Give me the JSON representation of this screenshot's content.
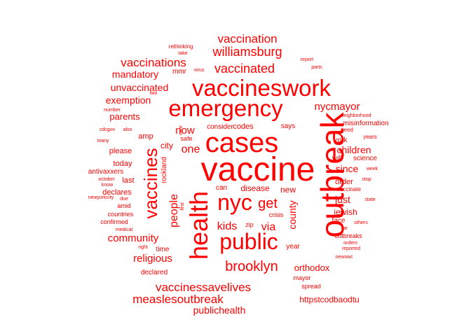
{
  "color": "#ff0000",
  "words": [
    {
      "text": "vaccine",
      "weight": 48
    },
    {
      "text": "outbreak",
      "weight": 46
    },
    {
      "text": "health",
      "weight": 36
    },
    {
      "text": "cases",
      "weight": 40
    },
    {
      "text": "vaccineswork",
      "weight": 33
    },
    {
      "text": "emergency",
      "weight": 33
    },
    {
      "text": "public",
      "weight": 32
    },
    {
      "text": "nyc",
      "weight": 32
    },
    {
      "text": "vaccines",
      "weight": 26
    },
    {
      "text": "get",
      "weight": 20
    },
    {
      "text": "brooklyn",
      "weight": 20
    },
    {
      "text": "vaccinated",
      "weight": 18
    },
    {
      "text": "williamsburg",
      "weight": 18
    },
    {
      "text": "vaccination",
      "weight": 17
    },
    {
      "text": "vaccinations",
      "weight": 17
    },
    {
      "text": "vaccinessavelives",
      "weight": 17
    },
    {
      "text": "people",
      "weight": 16
    },
    {
      "text": "measlesoutbreak",
      "weight": 17
    },
    {
      "text": "kids",
      "weight": 16
    },
    {
      "text": "via",
      "weight": 16
    },
    {
      "text": "community",
      "weight": 15
    },
    {
      "text": "religious",
      "weight": 15
    },
    {
      "text": "now",
      "weight": 15
    },
    {
      "text": "one",
      "weight": 16
    },
    {
      "text": "nycmayor",
      "weight": 15
    },
    {
      "text": "county",
      "weight": 14
    },
    {
      "text": "children",
      "weight": 14
    },
    {
      "text": "since",
      "weight": 14
    },
    {
      "text": "just",
      "weight": 14
    },
    {
      "text": "publichealth",
      "weight": 14
    },
    {
      "text": "unvaccinated",
      "weight": 14
    },
    {
      "text": "mandatory",
      "weight": 14
    },
    {
      "text": "exemption",
      "weight": 14
    },
    {
      "text": "parents",
      "weight": 13
    },
    {
      "text": "orthodox",
      "weight": 13
    },
    {
      "text": "httpstcodbaodtu",
      "weight": 12
    },
    {
      "text": "disease",
      "weight": 12
    },
    {
      "text": "jewish",
      "weight": 12
    },
    {
      "text": "city",
      "weight": 12
    },
    {
      "text": "please",
      "weight": 11
    },
    {
      "text": "today",
      "weight": 11
    },
    {
      "text": "order",
      "weight": 11
    },
    {
      "text": "codes",
      "weight": 11
    },
    {
      "text": "new",
      "weight": 12
    },
    {
      "text": "last",
      "weight": 11
    },
    {
      "text": "declares",
      "weight": 11
    },
    {
      "text": "time",
      "weight": 10
    },
    {
      "text": "amp",
      "weight": 11
    },
    {
      "text": "consider",
      "weight": 10
    },
    {
      "text": "rockland",
      "weight": 10
    },
    {
      "text": "misinformation",
      "weight": 10
    },
    {
      "text": "york",
      "weight": 10
    },
    {
      "text": "will",
      "weight": 10
    },
    {
      "text": "science",
      "weight": 10
    },
    {
      "text": "says",
      "weight": 10
    },
    {
      "text": "can",
      "weight": 10
    },
    {
      "text": "mmr",
      "weight": 10
    },
    {
      "text": "year",
      "weight": 10
    },
    {
      "text": "face",
      "weight": 10
    },
    {
      "text": "antivaxxers",
      "weight": 10
    },
    {
      "text": "outbreaks",
      "weight": 9
    },
    {
      "text": "confirmed",
      "weight": 9
    },
    {
      "text": "countries",
      "weight": 9
    },
    {
      "text": "amid",
      "weight": 9
    },
    {
      "text": "declared",
      "weight": 10
    },
    {
      "text": "mayor",
      "weight": 9
    },
    {
      "text": "spread",
      "weight": 9
    },
    {
      "text": "safe",
      "weight": 9
    },
    {
      "text": "crisis",
      "weight": 9
    },
    {
      "text": "zip",
      "weight": 9
    },
    {
      "text": "vaccinate",
      "weight": 8
    },
    {
      "text": "need",
      "weight": 8
    },
    {
      "text": "years",
      "weight": 8
    },
    {
      "text": "rethinking",
      "weight": 8
    },
    {
      "text": "take",
      "weight": 7
    },
    {
      "text": "virus",
      "weight": 7
    },
    {
      "text": "report",
      "weight": 7
    },
    {
      "text": "parts",
      "weight": 7
    },
    {
      "text": "two",
      "weight": 7
    },
    {
      "text": "number",
      "weight": 7
    },
    {
      "text": "cdcgov",
      "weight": 7
    },
    {
      "text": "also",
      "weight": 7
    },
    {
      "text": "many",
      "weight": 7
    },
    {
      "text": "neighborhood",
      "weight": 7
    },
    {
      "text": "care",
      "weight": 7
    },
    {
      "text": "first",
      "weight": 7
    },
    {
      "text": "october",
      "weight": 7
    },
    {
      "text": "know",
      "weight": 7
    },
    {
      "text": "newyorkcity",
      "weight": 7
    },
    {
      "text": "due",
      "weight": 7
    },
    {
      "text": "medical",
      "weight": 7
    },
    {
      "text": "right",
      "weight": 7
    },
    {
      "text": "week",
      "weight": 7
    },
    {
      "text": "stop",
      "weight": 7
    },
    {
      "text": "state",
      "weight": 7
    },
    {
      "text": "others",
      "weight": 7
    },
    {
      "text": "far",
      "weight": 7
    },
    {
      "text": "orders",
      "weight": 7
    },
    {
      "text": "reported",
      "weight": 7
    },
    {
      "text": "newswc",
      "weight": 7
    }
  ]
}
